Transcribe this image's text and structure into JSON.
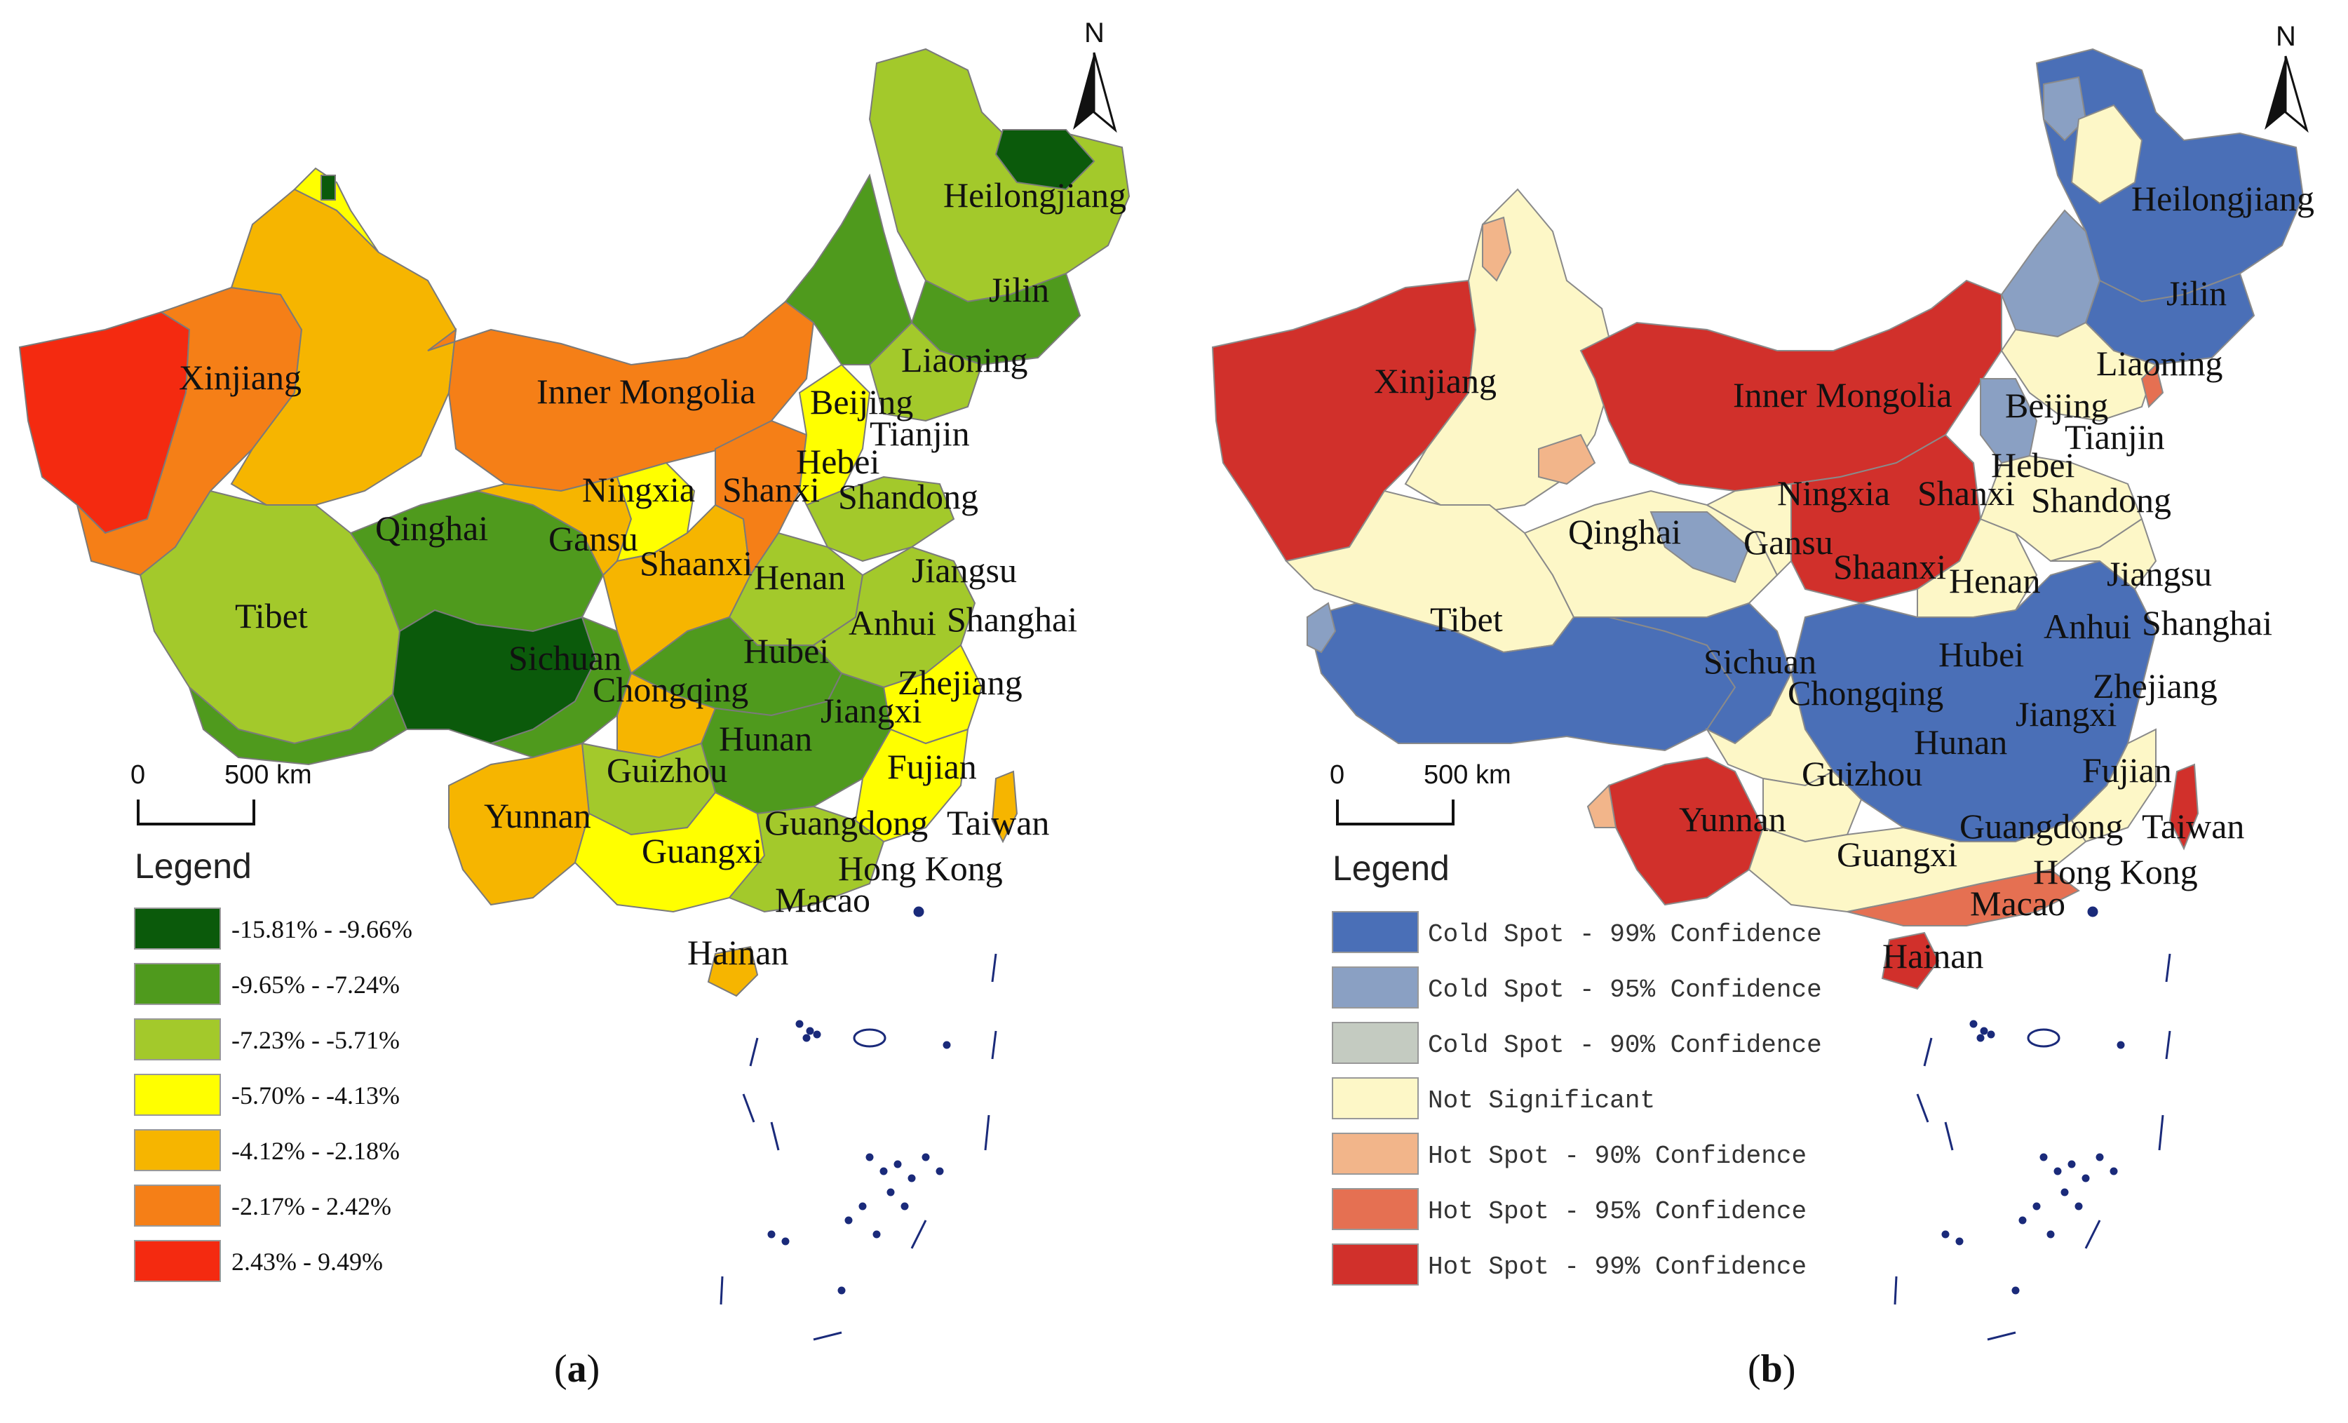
{
  "panels": [
    {
      "id": "a",
      "label_letter": "a",
      "legend_title": "Legend",
      "legend": [
        {
          "label": "-15.81% - -9.66%",
          "color": "#0b5a0b"
        },
        {
          "label": "-9.65% - -7.24%",
          "color": "#4f9a1d"
        },
        {
          "label": "-7.23% - -5.71%",
          "color": "#a3c92b"
        },
        {
          "label": "-5.70% - -4.13%",
          "color": "#ffff00"
        },
        {
          "label": "-4.12% - -2.18%",
          "color": "#f6b500"
        },
        {
          "label": "-2.17% - 2.42%",
          "color": "#f57f17"
        },
        {
          "label": "2.43% - 9.49%",
          "color": "#f42a10"
        }
      ],
      "scale": {
        "start": "0",
        "end": "500 km"
      },
      "north": "N"
    },
    {
      "id": "b",
      "label_letter": "b",
      "legend_title": "Legend",
      "legend": [
        {
          "label": "Cold Spot - 99% Confidence",
          "color": "#4a6fb7"
        },
        {
          "label": "Cold Spot - 95% Confidence",
          "color": "#8aa0c3"
        },
        {
          "label": "Cold Spot - 90% Confidence",
          "color": "#c4cbc1"
        },
        {
          "label": "Not Significant",
          "color": "#fdf7c7"
        },
        {
          "label": "Hot Spot - 90% Confidence",
          "color": "#f2b58a"
        },
        {
          "label": "Hot Spot - 95% Confidence",
          "color": "#e57052"
        },
        {
          "label": "Hot Spot - 99% Confidence",
          "color": "#d1302b"
        }
      ],
      "scale": {
        "start": "0",
        "end": "500 km"
      },
      "north": "N"
    }
  ],
  "provinces": {
    "heilongjiang": "Heilongjiang",
    "jilin": "Jilin",
    "liaoning": "Liaoning",
    "beijing": "Beijing",
    "tianjin": "Tianjin",
    "hebei": "Hebei",
    "shandong": "Shandong",
    "inner_mongolia": "Inner Mongolia",
    "xinjiang": "Xinjiang",
    "ningxia": "Ningxia",
    "shanxi": "Shanxi",
    "gansu": "Gansu",
    "shaanxi": "Shaanxi",
    "henan": "Henan",
    "jiangsu": "Jiangsu",
    "qinghai": "Qinghai",
    "tibet": "Tibet",
    "sichuan": "Sichuan",
    "hubei": "Hubei",
    "anhui": "Anhui",
    "shanghai": "Shanghai",
    "chongqing": "Chongqing",
    "zhejiang": "Zhejiang",
    "jiangxi": "Jiangxi",
    "hunan": "Hunan",
    "guizhou": "Guizhou",
    "fujian": "Fujian",
    "yunnan": "Yunnan",
    "guangdong": "Guangdong",
    "taiwan": "Taiwan",
    "guangxi": "Guangxi",
    "hong_kong": "Hong Kong",
    "macao": "Macao",
    "hainan": "Hainan"
  }
}
